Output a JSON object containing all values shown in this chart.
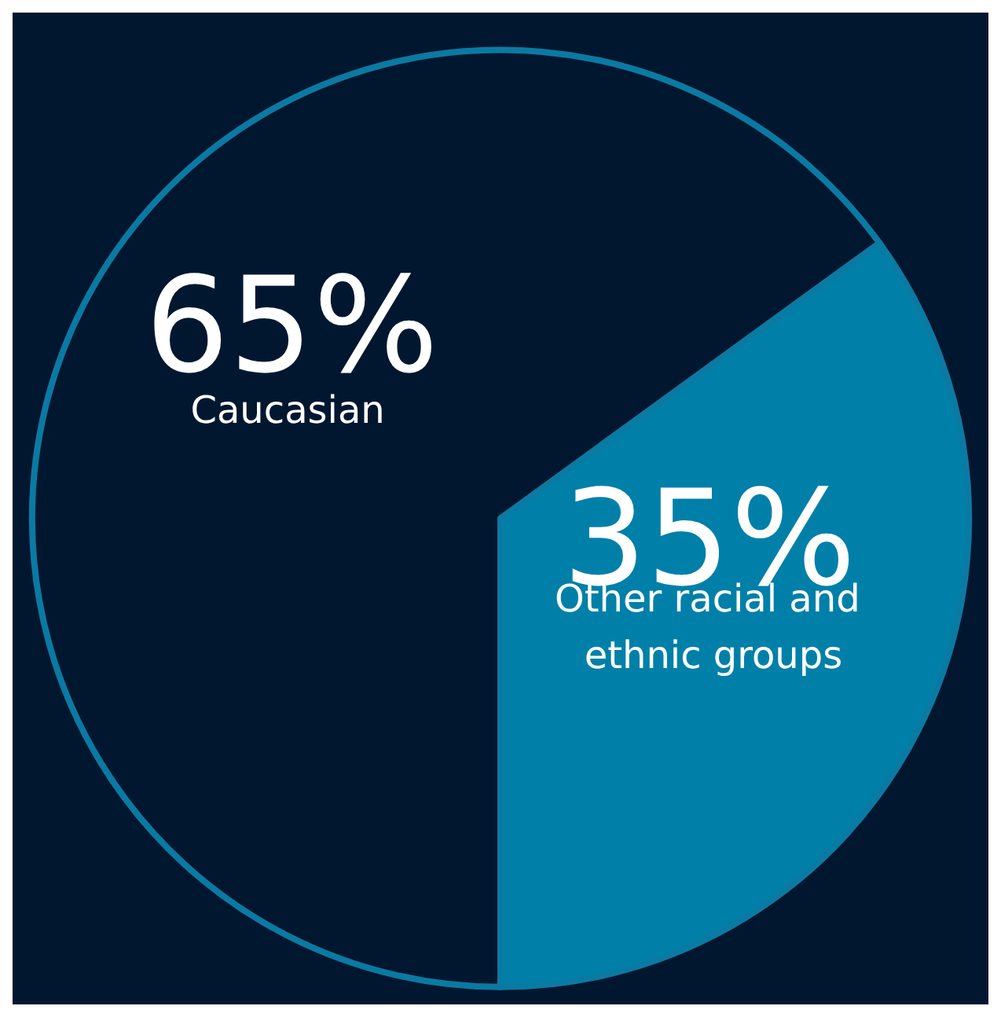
{
  "chart_data": {
    "type": "pie",
    "categories": [
      "Caucasian",
      "Other racial and ethnic groups"
    ],
    "values": [
      65,
      35
    ],
    "value_labels": [
      "65%",
      "35%"
    ],
    "colors": [
      "#011730",
      "#0080a8"
    ],
    "legend": false
  }
}
